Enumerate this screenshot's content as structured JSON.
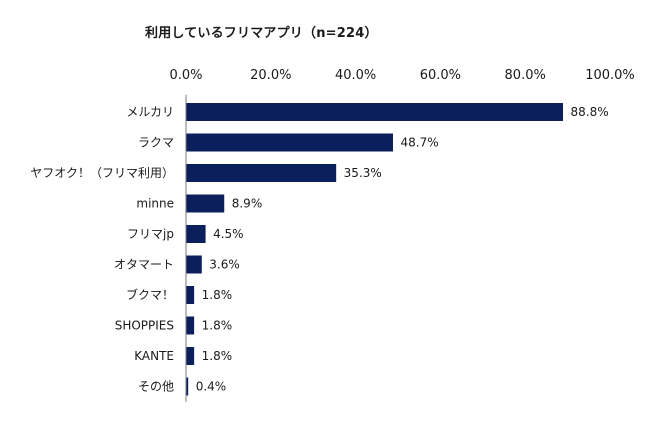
{
  "chart_data": {
    "type": "bar",
    "orientation": "horizontal",
    "title": "利用しているフリマアプリ（n=224）",
    "categories": [
      "メルカリ",
      "ラクマ",
      "ヤフオク！（フリマ利用）",
      "minne",
      "フリマjp",
      "オタマート",
      "ブクマ！",
      "SHOPPIES",
      "KANTE",
      "その他"
    ],
    "values": [
      88.8,
      48.7,
      35.3,
      8.9,
      4.5,
      3.6,
      1.8,
      1.8,
      1.8,
      0.4
    ],
    "value_labels": [
      "88.8%",
      "48.7%",
      "35.3%",
      "8.9%",
      "4.5%",
      "3.6%",
      "1.8%",
      "1.8%",
      "1.8%",
      "0.4%"
    ],
    "xlim": [
      0,
      100
    ],
    "x_ticks": [
      "0.0%",
      "20.0%",
      "40.0%",
      "60.0%",
      "80.0%",
      "100.0%"
    ],
    "x_axis_position": "top",
    "grid": false,
    "bar_color": "#0b1f5c"
  }
}
